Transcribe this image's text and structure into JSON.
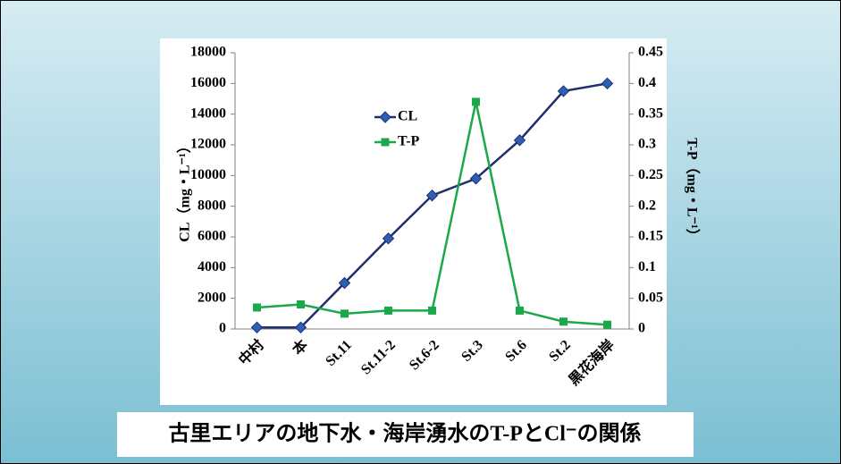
{
  "chart_data": {
    "type": "line",
    "title": "古里エリアの地下水・海岸湧水のT-PとCl⁻の関係",
    "ylabel": "CL（mg・L⁻¹）",
    "y2label": "T-P（mg・L⁻¹）",
    "categories": [
      "中村",
      "本",
      "St.11",
      "St.11-2",
      "St.6-2",
      "St.3",
      "St.6",
      "St.2",
      "黒花海岸"
    ],
    "series": [
      {
        "name": "CL",
        "color": "#1f2f6e",
        "marker": "diamond",
        "marker_color": "#2e5fb5",
        "values": [
          100,
          100,
          3000,
          5900,
          8700,
          9800,
          12300,
          15500,
          16000
        ]
      },
      {
        "name": "T-P",
        "color": "#1aa84a",
        "marker": "square",
        "marker_color": "#1aa84a",
        "axis": "y2",
        "values": [
          0.035,
          0.04,
          0.025,
          0.03,
          0.03,
          0.37,
          0.03,
          0.012,
          0.007
        ]
      }
    ],
    "ylim": [
      0,
      18000
    ],
    "yticks": [
      0,
      2000,
      4000,
      6000,
      8000,
      10000,
      12000,
      14000,
      16000,
      18000
    ],
    "y2lim": [
      0,
      0.45
    ],
    "y2ticks": [
      0,
      0.05,
      0.1,
      0.15,
      0.2,
      0.25,
      0.3,
      0.35,
      0.4,
      0.45
    ],
    "grid": false
  }
}
